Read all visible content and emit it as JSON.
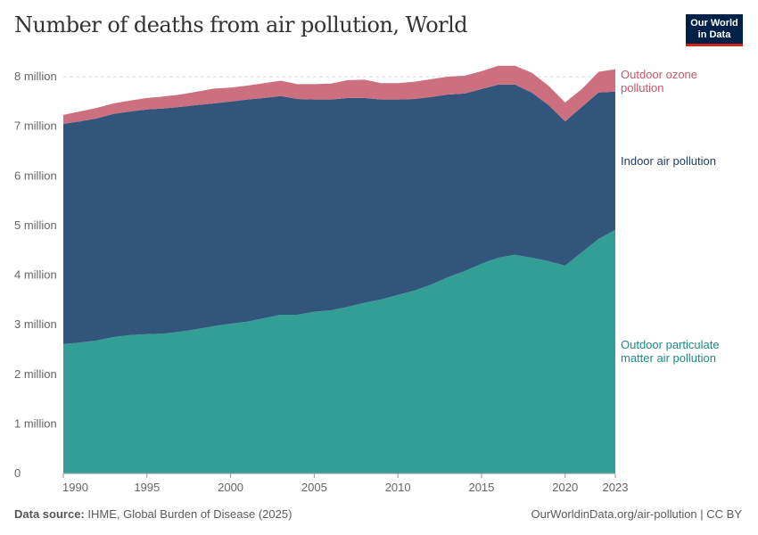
{
  "header": {
    "title": "Number of deaths from air pollution, World",
    "logo": "Our World in Data"
  },
  "footer": {
    "source_label": "Data source:",
    "source": "IHME, Global Burden of Disease (2025)",
    "url": "OurWorldinData.org/air-pollution | CC BY"
  },
  "chart_data": {
    "type": "area",
    "stacked": true,
    "title": "Number of deaths from air pollution, World",
    "xlabel": "",
    "ylabel": "",
    "xlim": [
      1990,
      2023
    ],
    "ylim": [
      0,
      8000000
    ],
    "x_ticks": [
      "1990",
      "1995",
      "2000",
      "2005",
      "2010",
      "2015",
      "2020",
      "2023"
    ],
    "y_ticks": [
      "0",
      "1 million",
      "2 million",
      "3 million",
      "4 million",
      "5 million",
      "6 million",
      "7 million",
      "8 million"
    ],
    "grid": "horizontal dashed",
    "legend": "right, inline labels",
    "x": [
      1990,
      1991,
      1992,
      1993,
      1994,
      1995,
      1996,
      1997,
      1998,
      1999,
      2000,
      2001,
      2002,
      2003,
      2004,
      2005,
      2006,
      2007,
      2008,
      2009,
      2010,
      2011,
      2012,
      2013,
      2014,
      2015,
      2016,
      2017,
      2018,
      2019,
      2020,
      2021,
      2022,
      2023
    ],
    "series": [
      {
        "name": "Outdoor particulate matter air pollution",
        "color": "#339e95",
        "values": [
          2.61,
          2.64,
          2.68,
          2.75,
          2.79,
          2.81,
          2.82,
          2.86,
          2.91,
          2.97,
          3.02,
          3.06,
          3.13,
          3.2,
          3.2,
          3.26,
          3.29,
          3.36,
          3.44,
          3.51,
          3.6,
          3.69,
          3.81,
          3.96,
          4.08,
          4.23,
          4.35,
          4.41,
          4.35,
          4.28,
          4.19,
          4.46,
          4.73,
          4.91
        ],
        "unit": "million"
      },
      {
        "name": "Indoor air pollution",
        "color": "#32557c",
        "values": [
          4.44,
          4.46,
          4.48,
          4.5,
          4.51,
          4.53,
          4.54,
          4.53,
          4.52,
          4.49,
          4.48,
          4.48,
          4.44,
          4.41,
          4.35,
          4.28,
          4.25,
          4.21,
          4.13,
          4.03,
          3.94,
          3.86,
          3.78,
          3.68,
          3.58,
          3.52,
          3.49,
          3.43,
          3.33,
          3.15,
          2.91,
          2.93,
          2.95,
          2.79
        ],
        "unit": "million"
      },
      {
        "name": "Outdoor ozone pollution",
        "color": "#cc707f",
        "values": [
          0.18,
          0.2,
          0.21,
          0.21,
          0.22,
          0.23,
          0.24,
          0.25,
          0.27,
          0.3,
          0.28,
          0.28,
          0.3,
          0.31,
          0.3,
          0.31,
          0.32,
          0.36,
          0.37,
          0.33,
          0.33,
          0.35,
          0.36,
          0.36,
          0.36,
          0.36,
          0.38,
          0.38,
          0.4,
          0.39,
          0.38,
          0.36,
          0.42,
          0.45
        ],
        "unit": "million"
      }
    ],
    "series_labels": [
      [
        "Outdoor particulate",
        "matter air pollution"
      ],
      [
        "Indoor air pollution"
      ],
      [
        "Outdoor ozone",
        "pollution"
      ]
    ]
  }
}
